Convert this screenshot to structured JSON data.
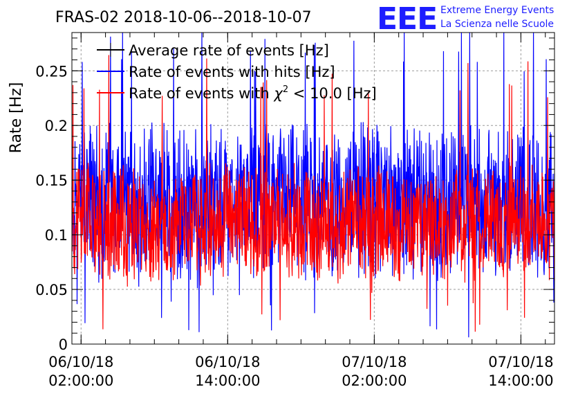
{
  "title": "FRAS-02 2018-10-06--2018-10-07",
  "logo": {
    "mark": "EEE",
    "line1": "Extreme Energy Events",
    "line2": "La Scienza nelle Scuole",
    "color": "#1a1aff"
  },
  "chart_data": {
    "type": "line",
    "title": "FRAS-02 2018-10-06--2018-10-07",
    "xlabel": "",
    "ylabel": "Rate [Hz]",
    "ylim": [
      0,
      0.285
    ],
    "xlim_hours": [
      0,
      39.5
    ],
    "grid": true,
    "legend_position": "top-left",
    "yticks": [
      {
        "value": 0,
        "label": "0"
      },
      {
        "value": 0.05,
        "label": "0.05"
      },
      {
        "value": 0.1,
        "label": "0.1"
      },
      {
        "value": 0.15,
        "label": "0.15"
      },
      {
        "value": 0.2,
        "label": "0.2"
      },
      {
        "value": 0.25,
        "label": "0.25"
      }
    ],
    "xticks": [
      {
        "hour": 0.75,
        "date": "06/10/18",
        "time": "02:00:00"
      },
      {
        "hour": 12.75,
        "date": "06/10/18",
        "time": "14:00:00"
      },
      {
        "hour": 24.75,
        "date": "07/10/18",
        "time": "02:00:00"
      },
      {
        "hour": 36.75,
        "date": "07/10/18",
        "time": "14:00:00"
      }
    ],
    "series": [
      {
        "name": "Average rate of events [Hz]",
        "label": "Average rate of events [Hz]",
        "color": "#000000",
        "mean": 0.11,
        "noise": 0.0
      },
      {
        "name": "Rate of events with hits [Hz]",
        "label": "Rate of events with hits [Hz]",
        "color": "#0000ff",
        "mean": 0.13,
        "noise": 0.06,
        "peak": 0.285
      },
      {
        "name": "Rate of events with chi2 < 10.0 [Hz]",
        "label_pre": "Rate of events with ",
        "label_chi": "χ",
        "label_sup": "2",
        "label_post": " < 10.0 [Hz]",
        "color": "#ff0000",
        "mean": 0.11,
        "noise": 0.045,
        "peak": 0.26
      }
    ]
  }
}
